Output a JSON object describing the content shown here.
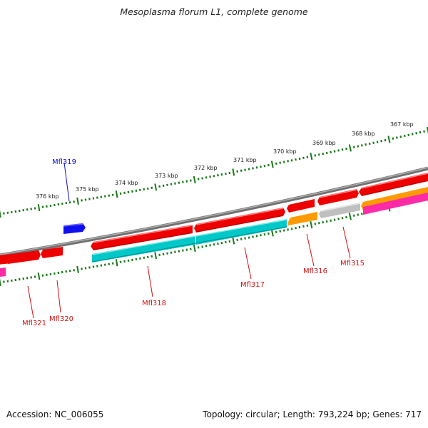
{
  "title": "Mesoplasma florum L1, complete genome",
  "footer": {
    "accession": "Accession: NC_006055",
    "stats": "Topology: circular; Length: 793,224 bp; Genes: 717"
  },
  "colors": {
    "backbone": "#808080",
    "tick": "#1a7a1a",
    "gene_red": "#ee0000",
    "gene_cyan": "#00c8c8",
    "gene_orange": "#ff9a00",
    "gene_gray": "#bfbfbf",
    "gene_magenta": "#ff2aa5",
    "gene_blue": "#1010ee",
    "label_red": "#d01010",
    "label_blue": "#1010cc"
  },
  "kbp_labels": [
    "376 kbp",
    "375 kbp",
    "374 kbp",
    "373 kbp",
    "372 kbp",
    "371 kbp",
    "370 kbp",
    "369 kbp",
    "368 kbp",
    "367 kbp"
  ],
  "gene_labels": [
    "Mfl319",
    "Mfl321",
    "Mfl320",
    "Mfl318",
    "Mfl317",
    "Mfl316",
    "Mfl315"
  ]
}
